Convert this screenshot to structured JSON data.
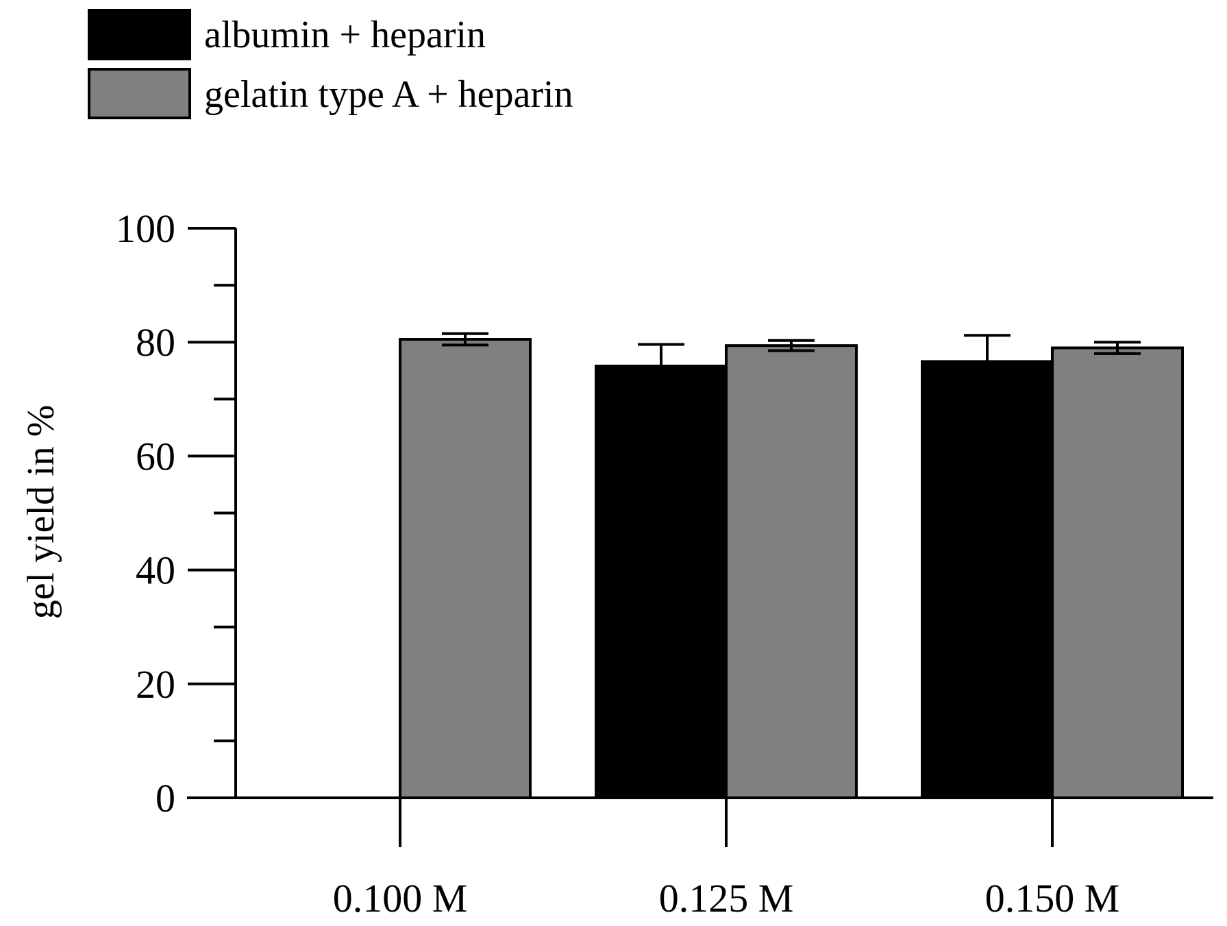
{
  "chart_data": {
    "type": "bar",
    "title": "",
    "xlabel": "",
    "ylabel": "gel yield in %",
    "categories": [
      "0.100 M",
      "0.125 M",
      "0.150 M"
    ],
    "series": [
      {
        "name": "albumin + heparin",
        "color": "#000000",
        "values": [
          0,
          75.8,
          76.6
        ],
        "errors": [
          0,
          3.8,
          4.6
        ]
      },
      {
        "name": "gelatin type A + heparin",
        "color": "#808080",
        "values": [
          80.5,
          79.4,
          79.0
        ],
        "errors": [
          1.0,
          0.9,
          1.0
        ]
      }
    ],
    "ylim": [
      0,
      100
    ],
    "yticks": [
      0,
      20,
      40,
      60,
      80,
      100
    ],
    "yticks_minor": [
      10,
      30,
      50,
      70,
      90
    ],
    "yticks_labels": [
      "0",
      "20",
      "40",
      "60",
      "80",
      "100"
    ],
    "grid": false,
    "legend_position": "top-left"
  }
}
